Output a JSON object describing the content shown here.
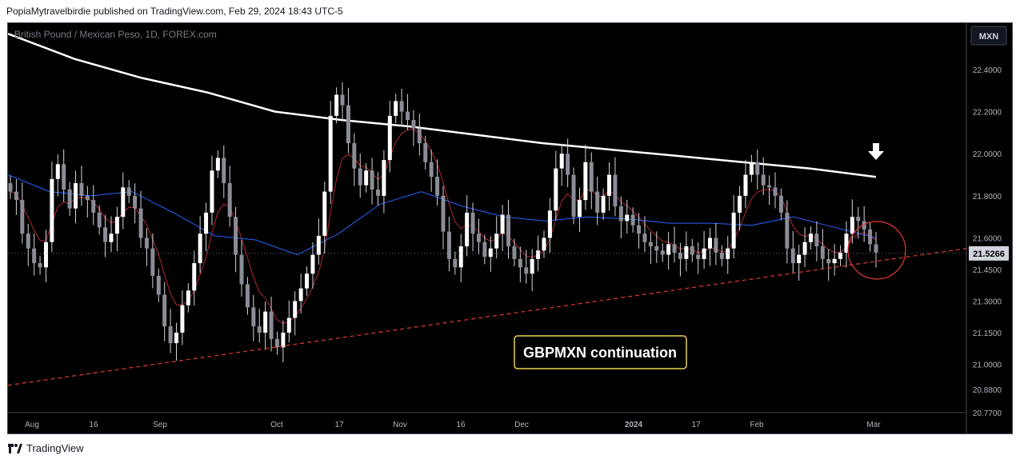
{
  "header": {
    "published_text": "PopiaMytravelbirdie published on TradingView.com, Feb 29, 2024 18:43 UTC-5"
  },
  "footer": {
    "brand": "TradingView",
    "logo_icon": "tradingview-logo-icon"
  },
  "colors": {
    "background": "#000000",
    "candle": "#d1d4dc",
    "ma_fast": "#b22833",
    "ma_mid": "#2962ff",
    "ma_slow": "#ffffff",
    "trendline": "#e53935",
    "annotation_border": "#e8d44d"
  },
  "chart_data": {
    "type": "candlestick",
    "symbol_title": "British Pound / Mexican Peso, 1D, FOREX.com",
    "currency_label": "MXN",
    "last_price_label": "21.5266",
    "ylim": [
      20.77,
      22.62
    ],
    "y_ticks": [
      "22.4000",
      "22.2000",
      "22.0000",
      "21.8000",
      "21.6000",
      "21.4500",
      "21.3000",
      "21.1500",
      "21.0000",
      "20.8800",
      "20.7700"
    ],
    "x_ticks": [
      "Aug",
      "16",
      "Sep",
      "Oct",
      "17",
      "Nov",
      "16",
      "Dec",
      "2024",
      "17",
      "Feb",
      "Mar"
    ],
    "annotation_text": "GBPMXN continuation",
    "close_estimates": [
      21.82,
      21.78,
      21.62,
      21.55,
      21.48,
      21.46,
      21.58,
      21.88,
      21.95,
      21.83,
      21.74,
      21.86,
      21.8,
      21.78,
      21.72,
      21.65,
      21.58,
      21.62,
      21.7,
      21.84,
      21.8,
      21.74,
      21.6,
      21.55,
      21.42,
      21.33,
      21.18,
      21.1,
      21.15,
      21.28,
      21.35,
      21.48,
      21.62,
      21.72,
      21.92,
      21.98,
      21.86,
      21.7,
      21.52,
      21.38,
      21.27,
      21.18,
      21.15,
      21.25,
      21.12,
      21.08,
      21.15,
      21.22,
      21.3,
      21.36,
      21.43,
      21.52,
      21.61,
      21.82,
      22.18,
      22.28,
      22.23,
      22.05,
      21.93,
      21.85,
      21.92,
      21.83,
      21.8,
      21.97,
      22.18,
      22.25,
      22.2,
      22.16,
      22.12,
      22.05,
      21.96,
      21.89,
      21.8,
      21.63,
      21.5,
      21.46,
      21.56,
      21.72,
      21.62,
      21.58,
      21.51,
      21.55,
      21.62,
      21.71,
      21.56,
      21.5,
      21.46,
      21.43,
      21.5,
      21.54,
      21.6,
      21.73,
      21.93,
      22.0,
      21.9,
      21.7,
      21.78,
      21.96,
      21.82,
      21.72,
      21.8,
      21.9,
      21.75,
      21.68,
      21.71,
      21.66,
      21.62,
      21.58,
      21.56,
      21.54,
      21.52,
      21.57,
      21.53,
      21.5,
      21.56,
      21.52,
      21.5,
      21.55,
      21.6,
      21.53,
      21.5,
      21.55,
      21.72,
      21.8,
      21.9,
      21.96,
      21.9,
      21.85,
      21.84,
      21.8,
      21.72,
      21.55,
      21.48,
      21.52,
      21.58,
      21.62,
      21.56,
      21.5,
      21.48,
      21.5,
      21.53,
      21.62,
      21.7,
      21.68,
      21.64,
      21.57,
      21.53
    ],
    "trendline": {
      "start_price": 20.9,
      "end_price": 21.55
    },
    "ma_slow_points": [
      22.57,
      22.45,
      22.36,
      22.29,
      22.2,
      22.16,
      22.13,
      22.09,
      22.05,
      22.02,
      21.99,
      21.96,
      21.93,
      21.89
    ],
    "ma_mid_points": [
      21.9,
      21.82,
      21.8,
      21.82,
      21.72,
      21.61,
      21.59,
      21.52,
      21.62,
      21.76,
      21.82,
      21.75,
      21.7,
      21.68,
      21.7,
      21.69,
      21.67,
      21.67,
      21.66,
      21.7,
      21.65,
      21.6
    ]
  }
}
